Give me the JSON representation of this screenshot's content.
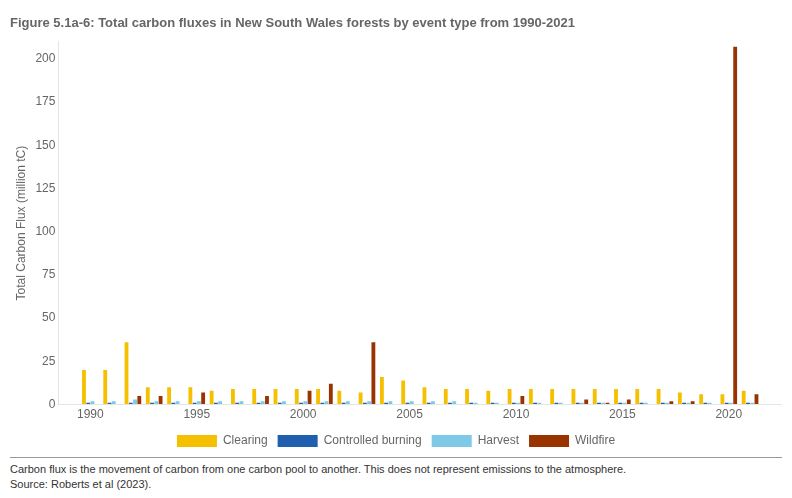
{
  "chart_data": {
    "type": "bar",
    "title": "Figure 5.1a-6: Total carbon fluxes in New South Wales forests by event type from 1990-2021",
    "ylabel": "Total Carbon Flux (million tC)",
    "annotations": [
      "Carbon flux is the movement of carbon from one carbon pool to another. This does not represent emissions to the atmosphere.",
      "Source: Roberts et al (2023)."
    ],
    "x": [
      1990,
      1991,
      1992,
      1993,
      1994,
      1995,
      1996,
      1997,
      1998,
      1999,
      2000,
      2001,
      2002,
      2003,
      2004,
      2005,
      2006,
      2007,
      2008,
      2009,
      2010,
      2011,
      2012,
      2013,
      2014,
      2015,
      2016,
      2017,
      2018,
      2019,
      2020,
      2021
    ],
    "series": [
      {
        "name": "Clearing",
        "color": "#F5C000",
        "values": [
          20,
          20,
          36,
          10,
          10,
          10,
          8,
          9,
          9,
          9,
          9,
          9,
          8,
          7,
          16,
          14,
          10,
          9,
          9,
          8,
          9,
          9,
          9,
          9,
          9,
          9,
          9,
          9,
          7,
          6,
          6,
          8
        ]
      },
      {
        "name": "Controlled burning",
        "color": "#1F5FAD",
        "values": [
          1,
          1,
          1,
          1,
          1,
          1,
          1,
          1,
          1,
          1,
          1,
          1,
          1,
          1,
          1,
          1,
          1,
          1,
          1,
          1,
          1,
          1,
          1,
          1,
          1,
          1,
          1,
          1,
          1,
          1,
          1,
          1
        ]
      },
      {
        "name": "Harvest",
        "color": "#7EC8E8",
        "values": [
          2,
          2,
          3,
          2,
          2,
          2,
          2,
          2,
          2,
          2,
          2,
          2,
          2,
          2,
          2,
          2,
          2,
          2,
          1,
          1,
          1,
          1,
          1,
          1,
          1,
          1,
          1,
          1,
          1,
          1,
          1,
          1
        ]
      },
      {
        "name": "Wildfire",
        "color": "#993300",
        "values": [
          0,
          0,
          5,
          5,
          0,
          7,
          0,
          0,
          5,
          0,
          8,
          12,
          0,
          36,
          0,
          0,
          0,
          0,
          0,
          0,
          5,
          0,
          0,
          3,
          1,
          3,
          0,
          2,
          2,
          0,
          207,
          6
        ]
      }
    ],
    "xlim": [
      1988.5,
      2022.5
    ],
    "xticks": [
      1990,
      1995,
      2000,
      2005,
      2010,
      2015,
      2020
    ],
    "ylim": [
      0,
      210
    ],
    "yticks": [
      0,
      25,
      50,
      75,
      100,
      125,
      150,
      175,
      200
    ],
    "grid": false,
    "legend": "bottom"
  }
}
